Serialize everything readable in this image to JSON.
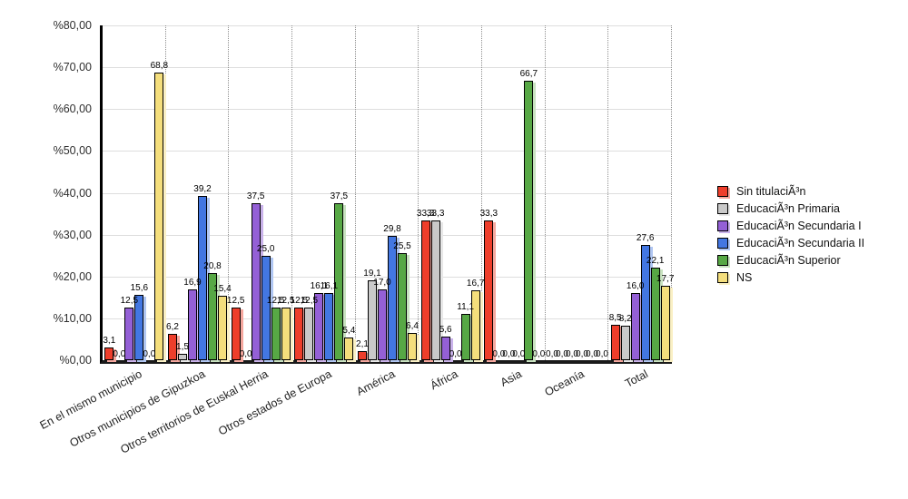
{
  "chart_data": {
    "type": "bar",
    "title": "",
    "xlabel": "",
    "ylabel": "",
    "ylim": [
      0,
      80
    ],
    "grid": {
      "horizontal": "solid-light-gray",
      "vertical": "dotted-group-separators"
    },
    "legend_position": "right",
    "value_label_decimal_separator": ",",
    "categories": [
      "En el mismo municipio",
      "Otros municipios de Gipuzkoa",
      "Otros territorios de Euskal Herria",
      "Otros estados de Europa",
      "América",
      "África",
      "Asia",
      "Oceanía",
      "Total"
    ],
    "series": [
      {
        "name": "Sin titulaciÃ³n",
        "color": "#ee3e2b",
        "shadow": "#f5a79e",
        "values": [
          3.1,
          6.2,
          12.5,
          12.5,
          2.1,
          33.3,
          33.3,
          0.0,
          8.5
        ]
      },
      {
        "name": "EducaciÃ³n Primaria",
        "color": "#c9c9c9",
        "shadow": "#e7e7e7",
        "values": [
          0.0,
          1.5,
          0.0,
          12.5,
          19.1,
          33.3,
          0.0,
          0.0,
          8.2
        ]
      },
      {
        "name": "EducaciÃ³n Secundaria I",
        "color": "#9460d6",
        "shadow": "#c9b2ea",
        "values": [
          12.5,
          16.9,
          37.5,
          16.1,
          17.0,
          5.6,
          0.0,
          0.0,
          16.0
        ]
      },
      {
        "name": "EducaciÃ³n Secundaria II",
        "color": "#4377e2",
        "shadow": "#b0c6f2",
        "values": [
          15.6,
          39.2,
          25.0,
          16.1,
          29.8,
          0.0,
          0.0,
          0.0,
          27.6
        ]
      },
      {
        "name": "EducaciÃ³n Superior",
        "color": "#57a845",
        "shadow": "#c8e2c0",
        "values": [
          0.0,
          20.8,
          12.5,
          37.5,
          25.5,
          11.1,
          66.7,
          0.0,
          22.1
        ]
      },
      {
        "name": "NS",
        "color": "#f4de7c",
        "shadow": "#faf0c5",
        "values": [
          68.8,
          15.4,
          12.5,
          5.4,
          6.4,
          16.7,
          0.0,
          0.0,
          17.7
        ]
      }
    ],
    "y_axis": {
      "ticks": [
        {
          "label": "%80,00",
          "value": 80
        },
        {
          "label": "%70,00",
          "value": 70
        },
        {
          "label": "%60,00",
          "value": 60
        },
        {
          "label": "%50,00",
          "value": 50
        },
        {
          "label": "%40,00",
          "value": 40
        },
        {
          "label": "%30,00",
          "value": 30
        },
        {
          "label": "%20,00",
          "value": 20
        },
        {
          "label": "%10,00",
          "value": 10
        },
        {
          "label": "%0,00",
          "value": 0
        }
      ]
    }
  }
}
